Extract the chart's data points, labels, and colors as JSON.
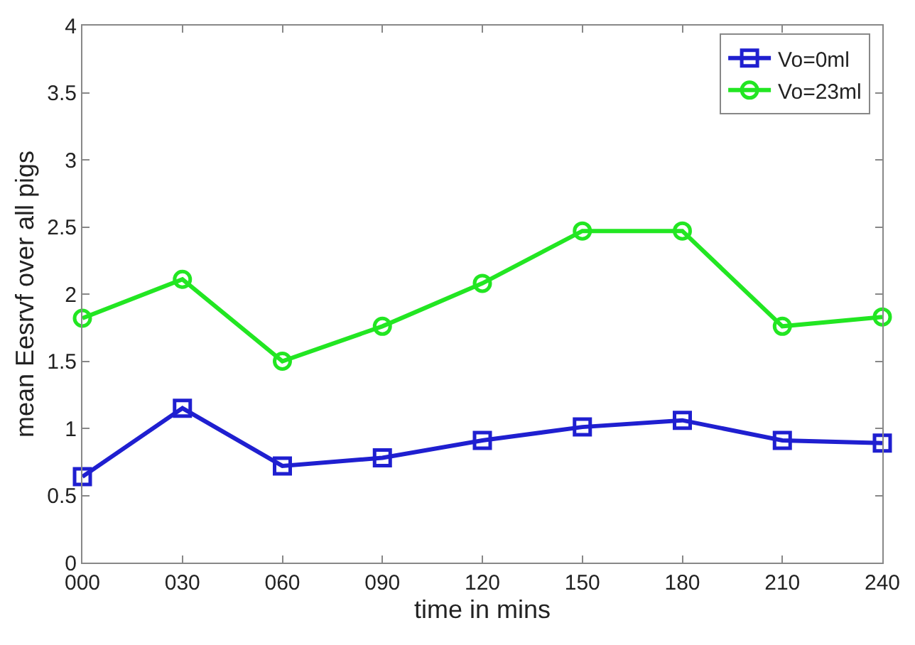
{
  "chart_data": {
    "type": "line",
    "xlabel": "time in mins",
    "ylabel": "mean Eesrvf over all pigs",
    "categories": [
      "000",
      "030",
      "060",
      "090",
      "120",
      "150",
      "180",
      "210",
      "240"
    ],
    "series": [
      {
        "name": "Vo=0ml",
        "color": "#1f1fd0",
        "marker": "square",
        "values": [
          0.64,
          1.15,
          0.72,
          0.78,
          0.91,
          1.01,
          1.06,
          0.91,
          0.89
        ]
      },
      {
        "name": "Vo=23ml",
        "color": "#22e622",
        "marker": "circle",
        "values": [
          1.82,
          2.11,
          1.5,
          1.76,
          2.08,
          2.47,
          2.47,
          1.76,
          1.83
        ]
      }
    ],
    "ylim": [
      0,
      4
    ],
    "yticks": [
      0,
      0.5,
      1,
      1.5,
      2,
      2.5,
      3,
      3.5,
      4
    ],
    "legend": "top right",
    "line_style": "solid"
  }
}
